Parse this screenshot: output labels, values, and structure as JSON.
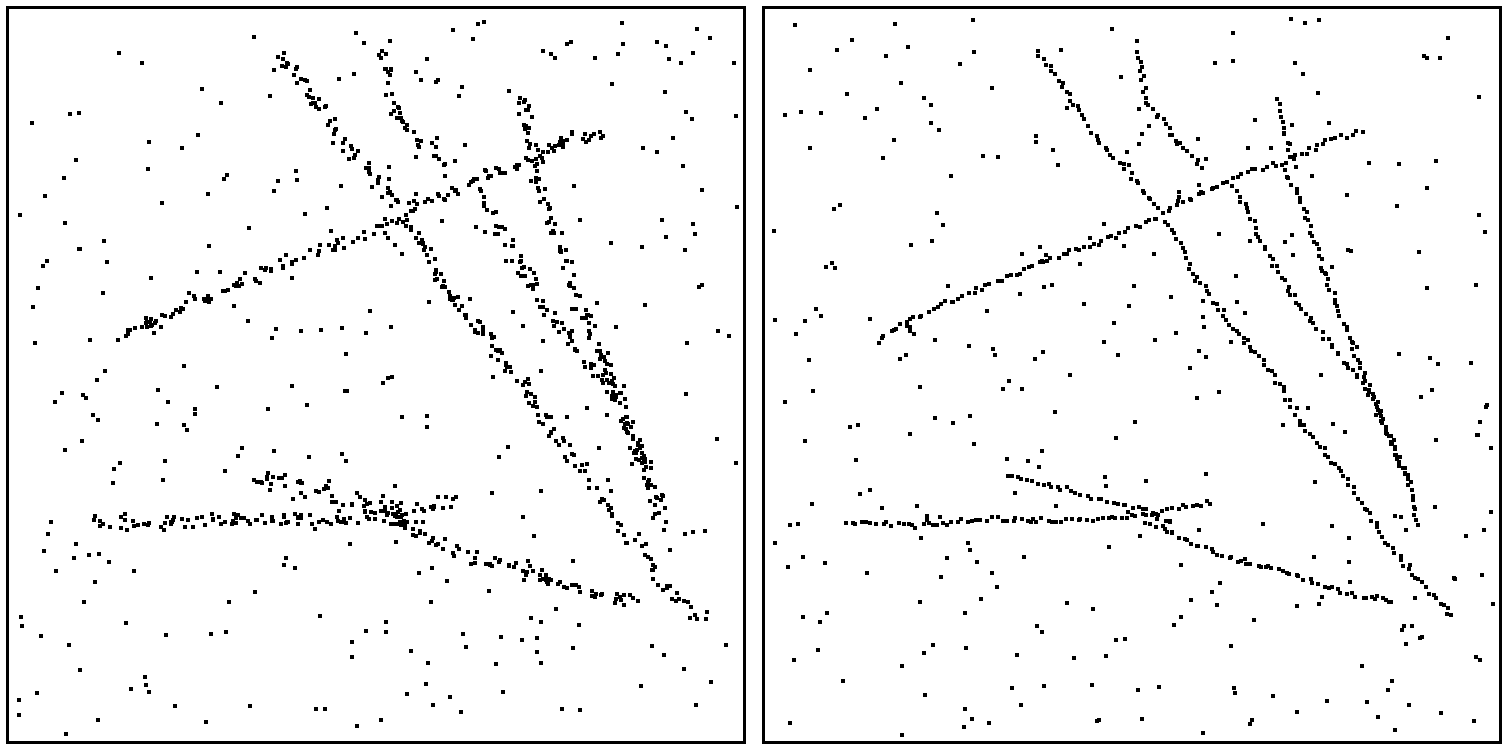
{
  "figure": {
    "panels": [
      {
        "name": "left-panel",
        "variant": "noisy",
        "ink_color": "#000000",
        "background": "#ffffff"
      },
      {
        "name": "right-panel",
        "variant": "refined",
        "ink_color": "#000000",
        "background": "#ffffff"
      }
    ],
    "description_hidden": "",
    "noise_seed": 17
  }
}
